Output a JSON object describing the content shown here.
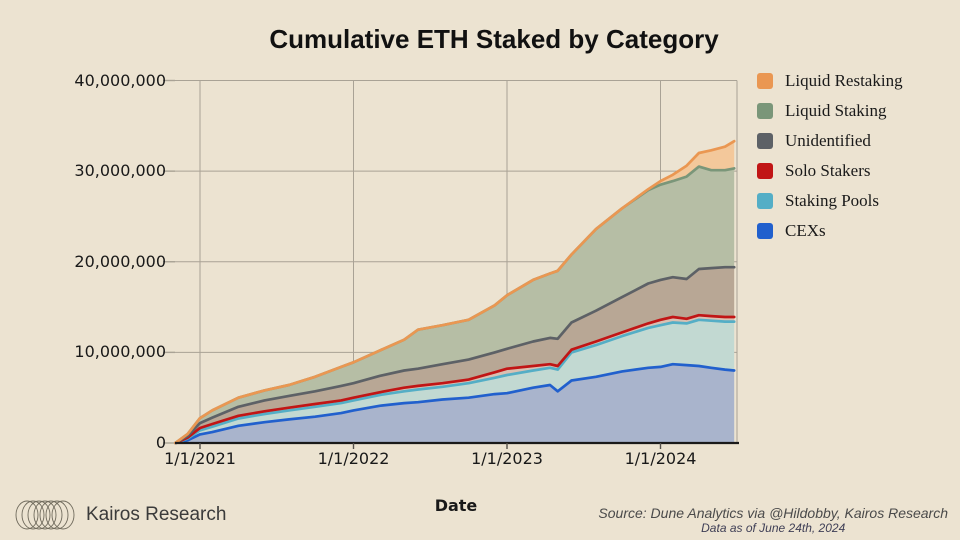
{
  "title": "Cumulative ETH Staked by Category",
  "xlabel": "Date",
  "footer": {
    "brand": "Kairos Research",
    "source_line": "Source: Dune Analytics via @Hildobby, Kairos Research",
    "data_as_of": "Data as of June 24th, 2024"
  },
  "colors": {
    "background": "#ece3d1",
    "grid": "#a9a295",
    "axis": "#1a1a1a",
    "tick": "#55504a",
    "text": "#1a1a1a"
  },
  "chart_data": {
    "type": "area",
    "stacked": true,
    "title": "Cumulative ETH Staked by Category",
    "xlabel": "Date",
    "ylabel": "",
    "unit": "ETH",
    "values_scale": "millions of ETH",
    "ylim": [
      0,
      40000000
    ],
    "grid": true,
    "legend_position": "right",
    "x_tick_labels": [
      "1/1/2021",
      "1/1/2022",
      "1/1/2023",
      "1/1/2024"
    ],
    "x_tick_years": [
      2021,
      2022,
      2023,
      2024
    ],
    "y_ticks": [
      0,
      10000000,
      20000000,
      30000000,
      40000000
    ],
    "y_tick_labels": [
      "0",
      "10,000,000",
      "20,000,000",
      "30,000,000",
      "40,000,000"
    ],
    "x_years": [
      2020.84,
      2020.92,
      2021.0,
      2021.08,
      2021.25,
      2021.42,
      2021.58,
      2021.75,
      2021.92,
      2022.0,
      2022.17,
      2022.33,
      2022.42,
      2022.58,
      2022.75,
      2022.92,
      2023.0,
      2023.17,
      2023.28,
      2023.33,
      2023.42,
      2023.58,
      2023.75,
      2023.92,
      2024.0,
      2024.08,
      2024.17,
      2024.25,
      2024.33,
      2024.42,
      2024.48
    ],
    "series": [
      {
        "name": "CEXs",
        "line_color": "#2160cd",
        "fill_color": "#a9b4cc",
        "values": [
          0,
          0.3,
          0.95,
          1.2,
          1.9,
          2.3,
          2.6,
          2.9,
          3.3,
          3.6,
          4.1,
          4.4,
          4.5,
          4.8,
          5.0,
          5.4,
          5.5,
          6.1,
          6.4,
          5.7,
          6.9,
          7.3,
          7.9,
          8.3,
          8.4,
          8.7,
          8.6,
          8.5,
          8.3,
          8.1,
          8.0
        ]
      },
      {
        "name": "Staking Pools",
        "line_color": "#54aec6",
        "fill_color": "#c2d9d2",
        "values": [
          0,
          0.2,
          0.45,
          0.6,
          0.8,
          0.9,
          1.0,
          1.1,
          1.1,
          1.1,
          1.2,
          1.3,
          1.4,
          1.4,
          1.6,
          1.8,
          2.0,
          1.9,
          1.9,
          2.4,
          3.1,
          3.5,
          3.9,
          4.4,
          4.6,
          4.6,
          4.6,
          5.1,
          5.2,
          5.3,
          5.4
        ]
      },
      {
        "name": "Solo Stakers",
        "line_color": "#c11515",
        "fill_color": "#d9c0b2",
        "values": [
          0,
          0.1,
          0.25,
          0.3,
          0.3,
          0.3,
          0.3,
          0.3,
          0.3,
          0.3,
          0.3,
          0.4,
          0.4,
          0.4,
          0.4,
          0.6,
          0.7,
          0.5,
          0.4,
          0.4,
          0.3,
          0.4,
          0.4,
          0.5,
          0.6,
          0.6,
          0.5,
          0.5,
          0.5,
          0.5,
          0.5
        ]
      },
      {
        "name": "Unidentified",
        "line_color": "#5d6166",
        "fill_color": "#b8a795",
        "values": [
          0,
          0.2,
          0.55,
          0.7,
          1.0,
          1.2,
          1.3,
          1.4,
          1.6,
          1.6,
          1.8,
          1.9,
          1.9,
          2.1,
          2.2,
          2.2,
          2.2,
          2.7,
          2.9,
          3.0,
          3.0,
          3.4,
          3.9,
          4.4,
          4.4,
          4.4,
          4.4,
          5.1,
          5.3,
          5.5,
          5.5
        ]
      },
      {
        "name": "Liquid Staking",
        "line_color": "#7a9679",
        "fill_color": "#b6bea5",
        "values": [
          0,
          0.2,
          0.55,
          0.8,
          1.0,
          1.1,
          1.2,
          1.6,
          2.1,
          2.3,
          2.8,
          3.4,
          4.3,
          4.3,
          4.4,
          5.2,
          5.9,
          6.8,
          7.1,
          7.5,
          7.5,
          9.0,
          9.8,
          10.3,
          10.5,
          10.6,
          11.3,
          11.3,
          10.8,
          10.7,
          10.9
        ]
      },
      {
        "name": "Liquid Restaking",
        "line_color": "#ea9752",
        "fill_color": "#f3c89b",
        "values": [
          0,
          0,
          0,
          0,
          0,
          0,
          0,
          0,
          0,
          0,
          0,
          0,
          0,
          0,
          0,
          0,
          0,
          0,
          0,
          0,
          0,
          0,
          0,
          0.1,
          0.4,
          0.7,
          1.2,
          1.5,
          2.2,
          2.6,
          3.0
        ]
      }
    ],
    "legend_order_top_first": [
      "Liquid Restaking",
      "Liquid Staking",
      "Unidentified",
      "Solo Stakers",
      "Staking Pools",
      "CEXs"
    ]
  }
}
